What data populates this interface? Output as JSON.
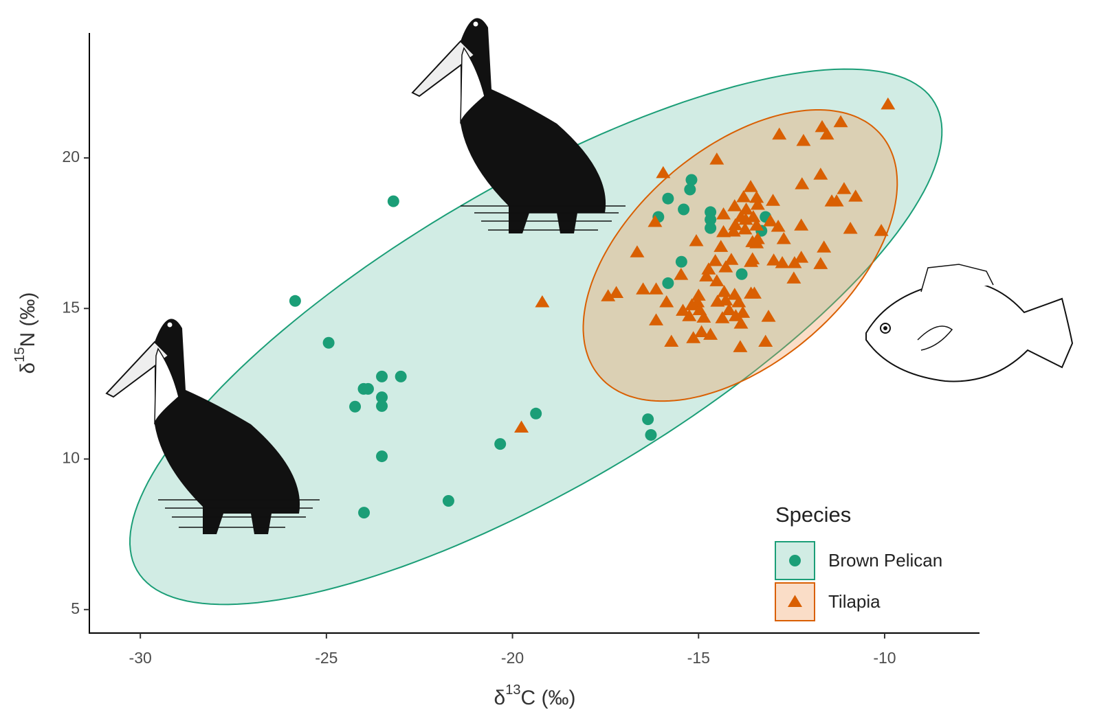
{
  "chart_data": {
    "type": "scatter",
    "x_label": {
      "prefix": "δ",
      "sup": "13",
      "main": "C (‰)"
    },
    "y_label": {
      "prefix": "δ",
      "sup": "15",
      "main": "N (‰)"
    },
    "xlim": [
      -31.37,
      -7.45
    ],
    "ylim": [
      4.22,
      24.15
    ],
    "xticks": [
      -30,
      -25,
      -20,
      -15,
      -10
    ],
    "yticks": [
      5,
      10,
      15,
      20
    ],
    "legend_title": "Species",
    "legend_position": "bottom-right",
    "series": [
      {
        "name": "Brown Pelican",
        "color": "#1b9e77",
        "marker": "circle",
        "ellipse": {
          "cx": -19.37,
          "cy": 14.06,
          "ax": 10.72,
          "ay": 7.76,
          "bx": -2.03,
          "by": 4.34
        },
        "x": [
          -23.2,
          -25.84,
          -24.94,
          -23.51,
          -23.0,
          -24.0,
          -23.88,
          -23.51,
          -23.51,
          -24.23,
          -19.37,
          -23.51,
          -20.33,
          -21.72,
          -23.99,
          -16.36,
          -16.28,
          -15.19,
          -15.23,
          -15.82,
          -15.4,
          -16.08,
          -14.68,
          -14.68,
          -14.68,
          -13.2,
          -13.31,
          -15.46,
          -15.82,
          -13.84
        ],
        "values": [
          18.56,
          15.25,
          13.86,
          12.74,
          12.74,
          12.33,
          12.33,
          12.05,
          11.76,
          11.74,
          11.51,
          10.09,
          10.5,
          8.61,
          8.22,
          11.32,
          10.8,
          19.27,
          18.95,
          18.65,
          18.29,
          18.04,
          18.2,
          17.95,
          17.67,
          18.04,
          17.58,
          16.55,
          15.84,
          16.14
        ]
      },
      {
        "name": "Tilapia",
        "color": "#d95f02",
        "marker": "triangle",
        "ellipse": {
          "cx": -13.88,
          "cy": 16.76,
          "ax": 4.07,
          "ay": 3.42,
          "bx": -1.11,
          "by": 3.42
        },
        "x": [
          -9.91,
          -12.83,
          -12.18,
          -11.68,
          -11.55,
          -11.18,
          -14.51,
          -15.95,
          -13.6,
          -12.22,
          -11.72,
          -11.09,
          -11.42,
          -11.29,
          -10.78,
          -13.79,
          -13.44,
          -13.0,
          -14.03,
          -13.72,
          -13.41,
          -14.33,
          -13.86,
          -13.73,
          -13.53,
          -16.17,
          -14.01,
          -13.75,
          -13.44,
          -13.07,
          -12.86,
          -12.24,
          -10.92,
          -10.09,
          -14.33,
          -14.06,
          -13.41,
          -12.71,
          -13.55,
          -13.44,
          -15.06,
          -14.4,
          -11.63,
          -16.65,
          -12.24,
          -12.42,
          -12.98,
          -12.75,
          -13.59,
          -13.55,
          -14.55,
          -14.12,
          -11.72,
          -14.73,
          -14.27,
          -14.79,
          -14.51,
          -15.47,
          -12.44,
          -16.14,
          -16.49,
          -17.43,
          -17.21,
          -14.31,
          -14.03,
          -13.59,
          -13.5,
          -15.0,
          -15.03,
          -15.18,
          -19.2,
          -15.86,
          -14.49,
          -14.27,
          -13.92,
          -15.42,
          -14.97,
          -14.18,
          -13.81,
          -15.25,
          -14.36,
          -14.0,
          -13.12,
          -16.14,
          -14.86,
          -13.86,
          -14.92,
          -14.68,
          -15.14,
          -15.73,
          -13.88,
          -13.2,
          -19.76
        ],
        "values": [
          21.78,
          20.78,
          20.57,
          21.03,
          20.78,
          21.19,
          19.95,
          19.5,
          19.04,
          19.13,
          19.45,
          18.97,
          18.56,
          18.56,
          18.72,
          18.7,
          18.68,
          18.58,
          18.4,
          18.29,
          18.45,
          18.13,
          18.04,
          17.95,
          18.04,
          17.88,
          17.77,
          17.63,
          17.76,
          17.9,
          17.72,
          17.76,
          17.65,
          17.58,
          17.54,
          17.56,
          17.31,
          17.31,
          17.21,
          17.17,
          17.24,
          17.05,
          17.03,
          16.87,
          16.69,
          16.51,
          16.6,
          16.51,
          16.55,
          16.64,
          16.58,
          16.62,
          16.48,
          16.3,
          16.37,
          16.07,
          15.91,
          16.12,
          16.0,
          15.64,
          15.64,
          15.41,
          15.52,
          15.55,
          15.46,
          15.5,
          15.5,
          15.43,
          15.21,
          15.11,
          15.21,
          15.21,
          15.23,
          15.27,
          15.21,
          14.93,
          14.95,
          14.95,
          14.86,
          14.75,
          14.68,
          14.75,
          14.73,
          14.61,
          14.7,
          14.5,
          14.22,
          14.13,
          14.02,
          13.9,
          13.72,
          13.9,
          11.05
        ]
      }
    ]
  }
}
